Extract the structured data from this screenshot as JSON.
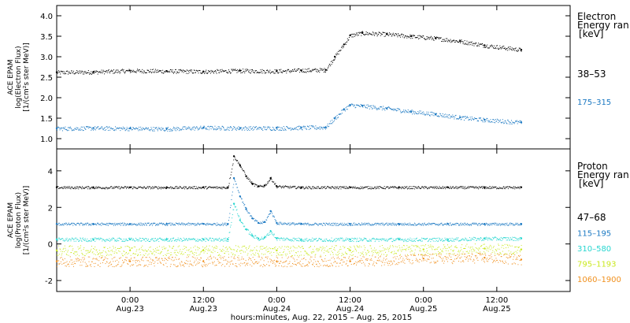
{
  "chart_data": [
    {
      "type": "scatter",
      "ylabel_lines": [
        "ACE EPAM",
        "log(Electron Flux)",
        "[1/(cm²s ster MeV)]"
      ],
      "ylim": [
        0.75,
        4.25
      ],
      "yticks": [
        1.0,
        1.5,
        2.0,
        2.5,
        3.0,
        3.5,
        4.0
      ],
      "ytick_labels": [
        "1.0",
        "1.5",
        "2.0",
        "2.5",
        "3.0",
        "3.5",
        "4.0"
      ],
      "legend_title": [
        "Electron",
        "Energy ran",
        "[keV]"
      ],
      "series": [
        {
          "name": "38–53",
          "color": "#000000",
          "x": [
            0,
            6,
            12,
            18,
            24,
            30,
            36,
            40,
            44,
            45.5,
            47,
            48,
            50,
            54,
            58,
            62,
            66,
            70,
            76
          ],
          "y": [
            2.62,
            2.63,
            2.66,
            2.65,
            2.64,
            2.66,
            2.65,
            2.67,
            2.68,
            3.0,
            3.3,
            3.52,
            3.58,
            3.55,
            3.5,
            3.45,
            3.38,
            3.28,
            3.17
          ]
        },
        {
          "name": "175–315",
          "color": "#1a78c2",
          "x": [
            0,
            6,
            12,
            18,
            24,
            30,
            36,
            40,
            44,
            45.5,
            47,
            48,
            50,
            54,
            58,
            62,
            66,
            70,
            76
          ],
          "y": [
            1.25,
            1.26,
            1.25,
            1.24,
            1.27,
            1.26,
            1.26,
            1.27,
            1.28,
            1.5,
            1.72,
            1.82,
            1.8,
            1.74,
            1.66,
            1.6,
            1.52,
            1.46,
            1.4
          ]
        }
      ]
    },
    {
      "type": "scatter",
      "ylabel_lines": [
        "ACE EPAM",
        "log(Proton Flux)",
        "[1/(cm²s ster MeV)]"
      ],
      "ylim": [
        -2.6,
        5.2
      ],
      "yticks": [
        -2,
        0,
        2,
        4
      ],
      "ytick_labels": [
        "-2",
        "0",
        "2",
        "4"
      ],
      "legend_title": [
        "Proton",
        "Energy ran",
        "[keV]"
      ],
      "series": [
        {
          "name": "47–68",
          "color": "#000000",
          "x": [
            0,
            6,
            12,
            18,
            24,
            28,
            29,
            30,
            31,
            32,
            33,
            34,
            35,
            36,
            40,
            48,
            56,
            64,
            70,
            76
          ],
          "y": [
            3.1,
            3.1,
            3.1,
            3.1,
            3.1,
            3.1,
            4.8,
            4.3,
            3.7,
            3.3,
            3.15,
            3.2,
            3.6,
            3.15,
            3.1,
            3.1,
            3.1,
            3.1,
            3.1,
            3.1
          ]
        },
        {
          "name": "115–195",
          "color": "#1a78c2",
          "x": [
            0,
            6,
            12,
            18,
            24,
            28,
            29,
            30,
            31,
            32,
            33,
            34,
            35,
            36,
            40,
            48,
            56,
            64,
            70,
            76
          ],
          "y": [
            1.1,
            1.1,
            1.1,
            1.1,
            1.1,
            1.1,
            3.6,
            2.6,
            1.9,
            1.4,
            1.15,
            1.2,
            1.8,
            1.15,
            1.1,
            1.1,
            1.1,
            1.1,
            1.1,
            1.1
          ]
        },
        {
          "name": "310–580",
          "color": "#27d6d0",
          "x": [
            0,
            6,
            12,
            18,
            24,
            28,
            29,
            30,
            31,
            32,
            33,
            34,
            35,
            36,
            40,
            48,
            56,
            64,
            70,
            76
          ],
          "y": [
            0.25,
            0.25,
            0.25,
            0.25,
            0.25,
            0.25,
            2.2,
            1.3,
            0.8,
            0.45,
            0.3,
            0.35,
            0.7,
            0.3,
            0.25,
            0.25,
            0.25,
            0.25,
            0.3,
            0.3
          ]
        },
        {
          "name": "795–1193",
          "color": "#c9e81e",
          "x": [
            0,
            12,
            24,
            36,
            48,
            60,
            70,
            76
          ],
          "y": [
            -0.35,
            -0.35,
            -0.35,
            -0.35,
            -0.35,
            -0.3,
            -0.25,
            -0.3
          ]
        },
        {
          "name": "1060–1900",
          "color": "#f0901e",
          "x": [
            0,
            12,
            24,
            36,
            48,
            60,
            70,
            76
          ],
          "y": [
            -0.95,
            -0.95,
            -0.95,
            -0.95,
            -0.95,
            -0.8,
            -0.75,
            -0.85
          ]
        }
      ]
    }
  ],
  "xaxis": {
    "xlim": [
      0,
      84
    ],
    "ticks": [
      {
        "x": 12,
        "time": "0:00",
        "date": "Aug.23"
      },
      {
        "x": 24,
        "time": "12:00",
        "date": "Aug.23"
      },
      {
        "x": 36,
        "time": "0:00",
        "date": "Aug.24"
      },
      {
        "x": 48,
        "time": "12:00",
        "date": "Aug.24"
      },
      {
        "x": 60,
        "time": "0:00",
        "date": "Aug.25"
      },
      {
        "x": 72,
        "time": "12:00",
        "date": "Aug.25"
      }
    ],
    "xlabel": "hours:minutes, Aug. 22, 2015 – Aug. 25, 2015"
  }
}
